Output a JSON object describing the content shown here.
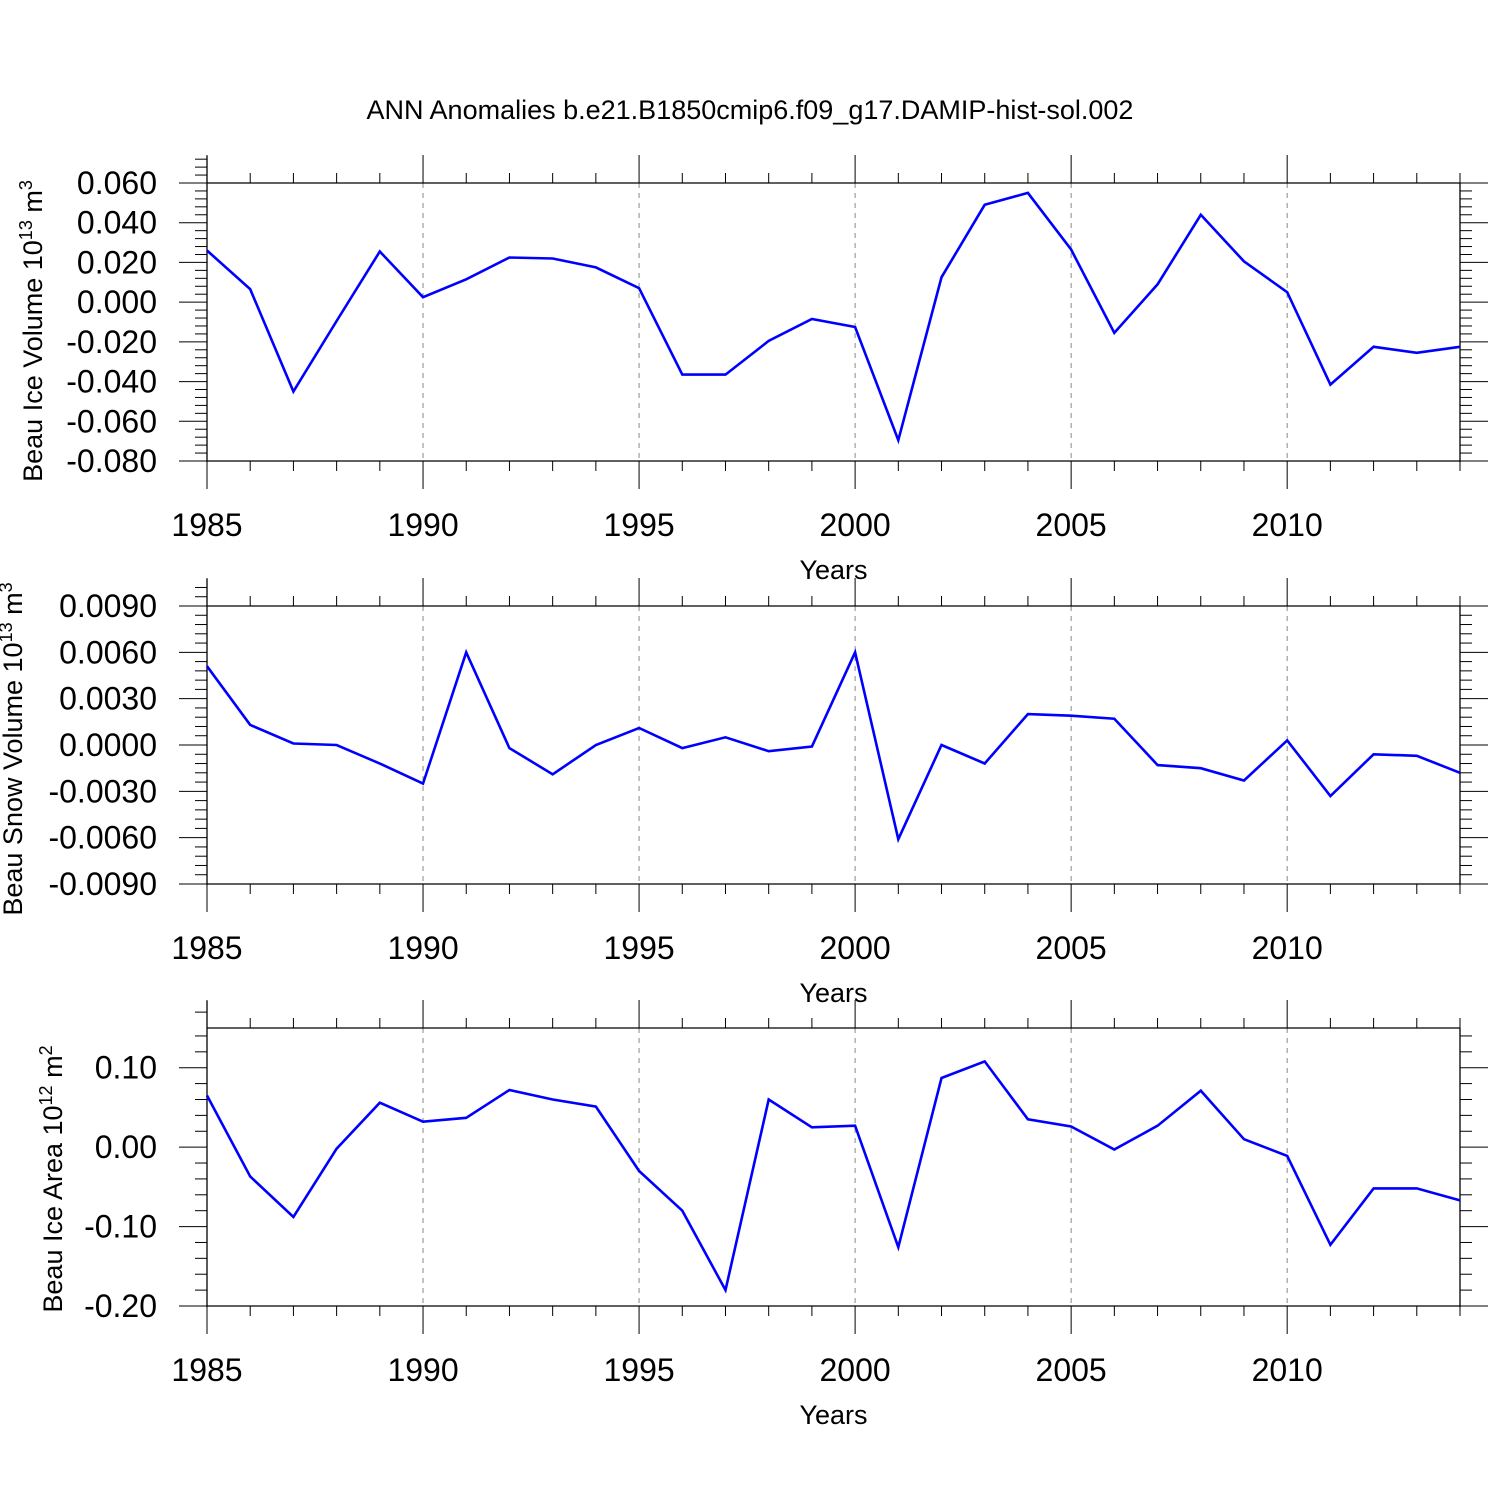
{
  "title": "ANN Anomalies b.e21.B1850cmip6.f09_g17.DAMIP-hist-sol.002",
  "colors": {
    "line": "#0000ff",
    "axis": "#000000",
    "grid": "#888888"
  },
  "chart_data": [
    {
      "type": "line",
      "ylabel": "Beau Ice Volume 10",
      "ylabel_sup": "13",
      "ylabel_unit": " m",
      "ylabel_unit_sup": "3",
      "xlabel": "Years",
      "xlim": [
        1985,
        2014
      ],
      "ylim": [
        -0.08,
        0.06
      ],
      "yticks": [
        -0.08,
        -0.06,
        -0.04,
        -0.02,
        0.0,
        0.02,
        0.04,
        0.06
      ],
      "ytick_labels": [
        "-0.080",
        "-0.060",
        "-0.040",
        "-0.020",
        "0.000",
        "0.020",
        "0.040",
        "0.060"
      ],
      "xticks": [
        1985,
        1990,
        1995,
        2000,
        2005,
        2010
      ],
      "xtick_labels": [
        "1985",
        "1990",
        "1995",
        "2000",
        "2005",
        "2010"
      ],
      "grid_x": [
        1990,
        1995,
        2000,
        2005,
        2010
      ],
      "x": [
        1985,
        1986,
        1987,
        1988,
        1989,
        1990,
        1991,
        1992,
        1993,
        1994,
        1995,
        1996,
        1997,
        1998,
        1999,
        2000,
        2001,
        2002,
        2003,
        2004,
        2005,
        2006,
        2007,
        2008,
        2009,
        2010,
        2011,
        2012,
        2013,
        2014
      ],
      "values": [
        0.026,
        0.0065,
        -0.045,
        -0.0095,
        0.0255,
        0.0025,
        0.0115,
        0.0225,
        0.022,
        0.0175,
        0.007,
        -0.0365,
        -0.0365,
        -0.0195,
        -0.0085,
        -0.0125,
        -0.0695,
        0.0125,
        0.049,
        0.055,
        0.0265,
        -0.0155,
        0.009,
        0.044,
        0.0205,
        0.005,
        -0.0415,
        -0.0225,
        -0.0255,
        -0.0225
      ]
    },
    {
      "type": "line",
      "ylabel": "Beau Snow Volume 10",
      "ylabel_sup": "13",
      "ylabel_unit": " m",
      "ylabel_unit_sup": "3",
      "xlabel": "Years",
      "xlim": [
        1985,
        2014
      ],
      "ylim": [
        -0.009,
        0.009
      ],
      "yticks": [
        -0.009,
        -0.006,
        -0.003,
        0.0,
        0.003,
        0.006,
        0.009
      ],
      "ytick_labels": [
        "-0.0090",
        "-0.0060",
        "-0.0030",
        "0.0000",
        "0.0030",
        "0.0060",
        "0.0090"
      ],
      "xticks": [
        1985,
        1990,
        1995,
        2000,
        2005,
        2010
      ],
      "xtick_labels": [
        "1985",
        "1990",
        "1995",
        "2000",
        "2005",
        "2010"
      ],
      "grid_x": [
        1990,
        1995,
        2000,
        2005,
        2010
      ],
      "x": [
        1985,
        1986,
        1987,
        1988,
        1989,
        1990,
        1991,
        1992,
        1993,
        1994,
        1995,
        1996,
        1997,
        1998,
        1999,
        2000,
        2001,
        2002,
        2003,
        2004,
        2005,
        2006,
        2007,
        2008,
        2009,
        2010,
        2011,
        2012,
        2013,
        2014
      ],
      "values": [
        0.0051,
        0.0013,
        0.0001,
        0.0,
        -0.0012,
        -0.0025,
        0.006,
        -0.0002,
        -0.0019,
        0.0,
        0.0011,
        -0.0002,
        0.0005,
        -0.0004,
        -0.0001,
        0.006,
        -0.0061,
        0.0,
        -0.0012,
        0.002,
        0.0019,
        0.0017,
        -0.0013,
        -0.0015,
        -0.0023,
        0.0003,
        -0.0033,
        -0.0006,
        -0.0007,
        -0.0018
      ]
    },
    {
      "type": "line",
      "ylabel": "Beau Ice Area 10",
      "ylabel_sup": "12",
      "ylabel_unit": " m",
      "ylabel_unit_sup": "2",
      "xlabel": "Years",
      "xlim": [
        1985,
        2014
      ],
      "ylim": [
        -0.2,
        0.15
      ],
      "yticks": [
        -0.2,
        -0.1,
        0.0,
        0.1
      ],
      "ytick_labels": [
        "-0.20",
        "-0.10",
        "0.00",
        "0.10"
      ],
      "xticks": [
        1985,
        1990,
        1995,
        2000,
        2005,
        2010
      ],
      "xtick_labels": [
        "1985",
        "1990",
        "1995",
        "2000",
        "2005",
        "2010"
      ],
      "grid_x": [
        1990,
        1995,
        2000,
        2005,
        2010
      ],
      "x": [
        1985,
        1986,
        1987,
        1988,
        1989,
        1990,
        1991,
        1992,
        1993,
        1994,
        1995,
        1996,
        1997,
        1998,
        1999,
        2000,
        2001,
        2002,
        2003,
        2004,
        2005,
        2006,
        2007,
        2008,
        2009,
        2010,
        2011,
        2012,
        2013,
        2014
      ],
      "values": [
        0.065,
        -0.037,
        -0.088,
        -0.002,
        0.056,
        0.032,
        0.037,
        0.072,
        0.06,
        0.051,
        -0.03,
        -0.08,
        -0.18,
        0.06,
        0.025,
        0.027,
        -0.126,
        0.087,
        0.108,
        0.035,
        0.026,
        -0.003,
        0.027,
        0.071,
        0.01,
        -0.011,
        -0.123,
        -0.052,
        -0.052,
        -0.067
      ]
    }
  ]
}
